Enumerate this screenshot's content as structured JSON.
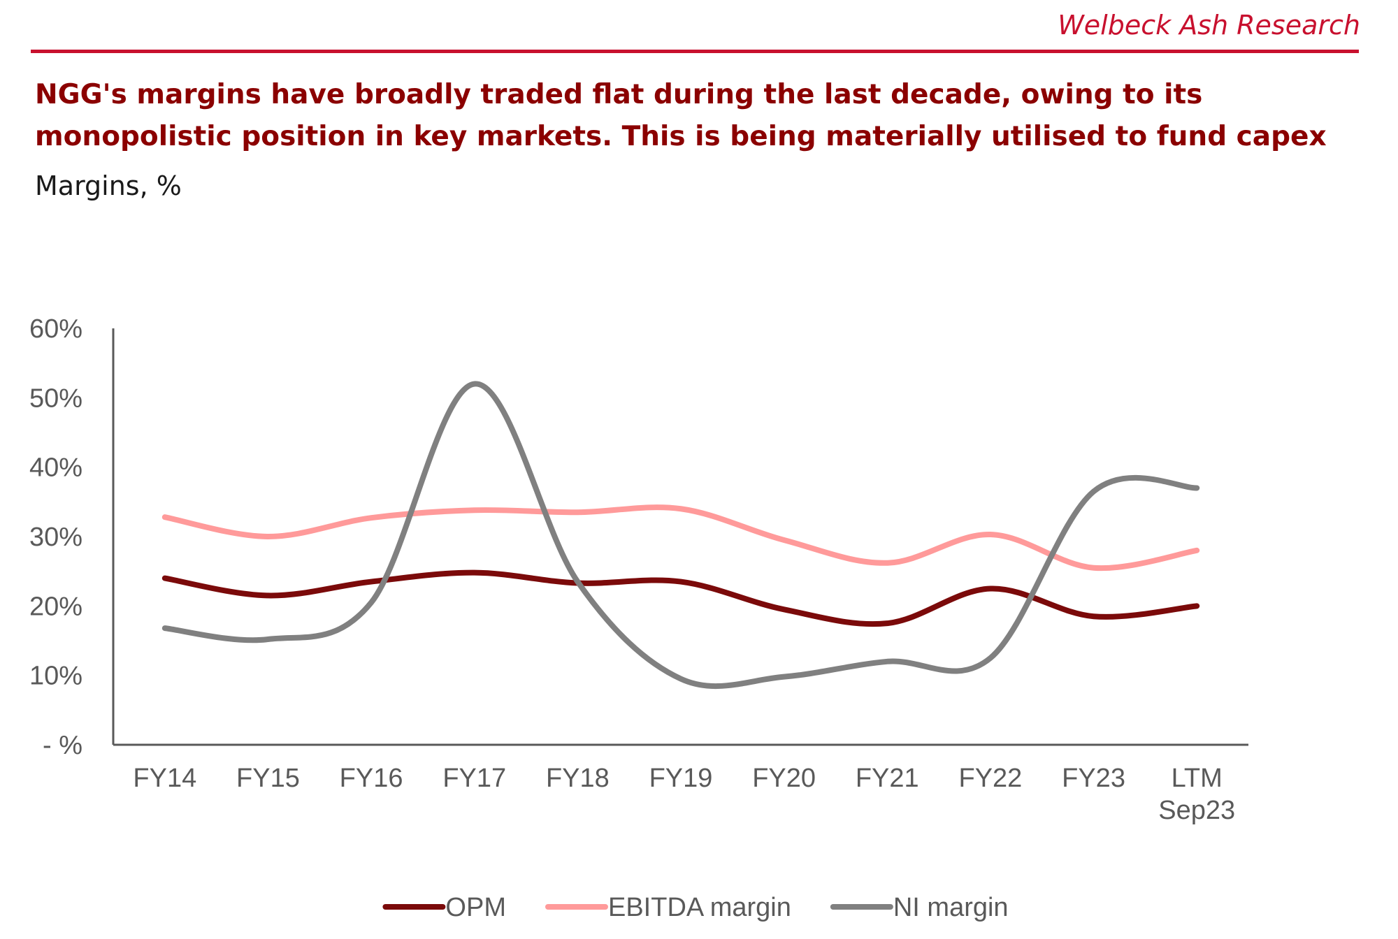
{
  "header": {
    "source": "Welbeck Ash Research",
    "headline": "NGG's margins have broadly traded flat during the last decade, owing to its monopolistic position in key markets. This is being materially utilised to fund capex",
    "subtitle": "Margins, %"
  },
  "chart_data": {
    "type": "line",
    "categories": [
      "FY14",
      "FY15",
      "FY16",
      "FY17",
      "FY18",
      "FY19",
      "FY20",
      "FY21",
      "FY22",
      "FY23",
      "LTM Sep23"
    ],
    "y_tick_labels": [
      "- %",
      "10%",
      "20%",
      "30%",
      "40%",
      "50%",
      "60%"
    ],
    "ylim": [
      0,
      60
    ],
    "y_ticks": [
      0,
      10,
      20,
      30,
      40,
      50,
      60
    ],
    "smooth": true,
    "grid": false,
    "legend_position": "bottom",
    "series": [
      {
        "name": "OPM",
        "color": "#7b0a0a",
        "values": [
          24,
          21.5,
          23.5,
          24.8,
          23.3,
          23.5,
          19.5,
          17.5,
          22.5,
          18.5,
          20
        ]
      },
      {
        "name": "EBITDA margin",
        "color": "#ff9a9a",
        "values": [
          32.8,
          30,
          32.7,
          33.8,
          33.5,
          34,
          29.5,
          26.2,
          30.3,
          25.5,
          28
        ]
      },
      {
        "name": "NI margin",
        "color": "#808080",
        "values": [
          16.8,
          15.2,
          20.5,
          52,
          23.5,
          9.5,
          9.8,
          12,
          12.5,
          36.5,
          37
        ]
      }
    ]
  }
}
